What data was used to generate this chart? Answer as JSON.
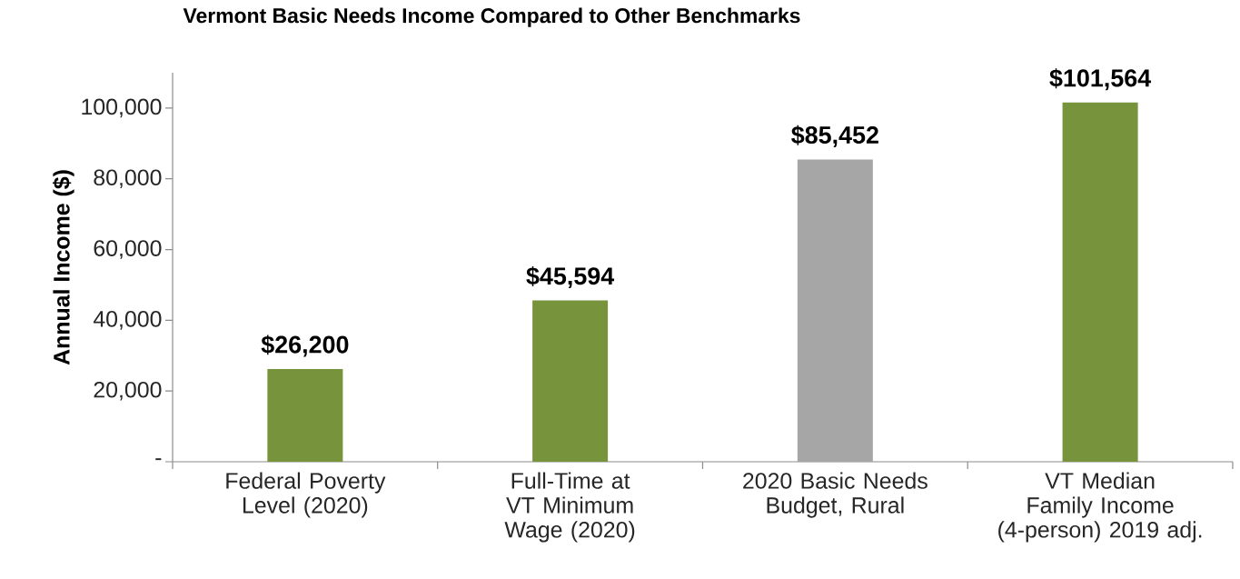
{
  "chart_data": {
    "type": "bar",
    "title": "Vermont Basic Needs Income Compared to Other Benchmarks",
    "ylabel": "Annual Income ($)",
    "categories": [
      "Federal Poverty Level (2020)",
      "Full-Time at VT Minimum Wage (2020)",
      "2020 Basic Needs Budget, Rural",
      "VT Median Family Income (4-person) 2019 adj."
    ],
    "values": [
      26200,
      45594,
      85452,
      101564
    ],
    "colors": [
      "#77933c",
      "#77933c",
      "#a6a6a6",
      "#77933c"
    ],
    "value_labels": [
      "$26,200",
      "$45,594",
      "$85,452",
      "$101,564"
    ],
    "ylim": [
      0,
      110000
    ],
    "yticks": [
      {
        "value": 0,
        "label": "-"
      },
      {
        "value": 20000,
        "label": "20,000"
      },
      {
        "value": 40000,
        "label": "40,000"
      },
      {
        "value": 60000,
        "label": "60,000"
      },
      {
        "value": 80000,
        "label": "80,000"
      },
      {
        "value": 100000,
        "label": "100,000"
      }
    ],
    "grid": false
  }
}
